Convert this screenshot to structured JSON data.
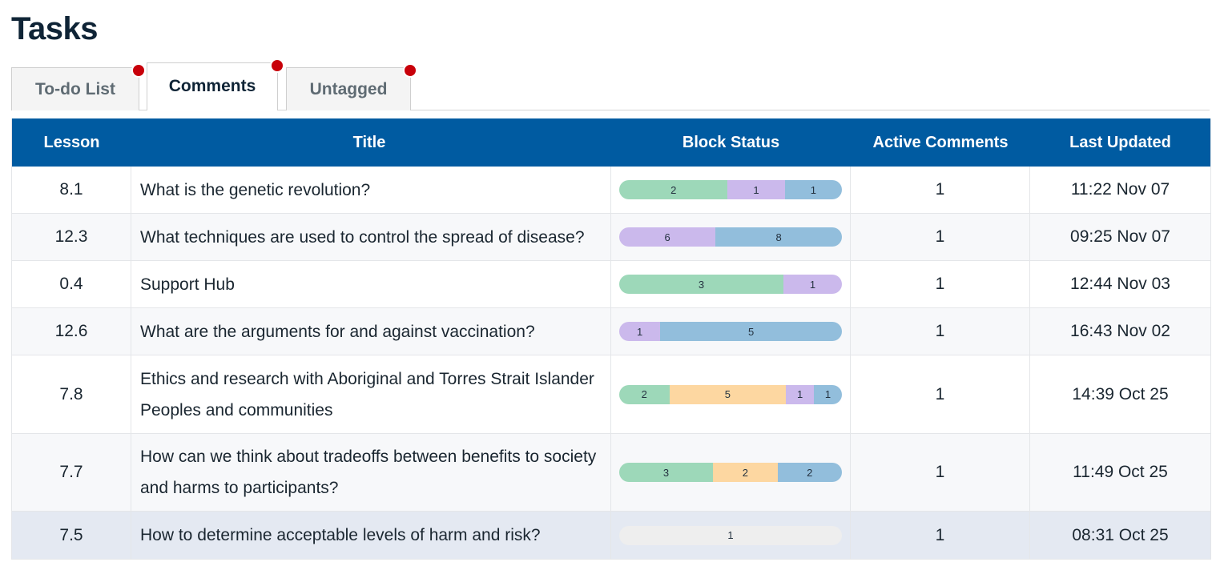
{
  "page": {
    "title": "Tasks"
  },
  "tabs": [
    {
      "label": "To-do List",
      "active": false,
      "has_dot": true
    },
    {
      "label": "Comments",
      "active": true,
      "has_dot": true
    },
    {
      "label": "Untagged",
      "active": false,
      "has_dot": true
    }
  ],
  "colors": {
    "header_bg": "#005ba1",
    "dot": "#c8000a",
    "green": "#9dd8b9",
    "purple": "#cbb9ec",
    "blue": "#92bedc",
    "orange": "#fdd7a1",
    "grey": "#eeeeee"
  },
  "table": {
    "columns": [
      "Lesson",
      "Title",
      "Block Status",
      "Active Comments",
      "Last Updated"
    ],
    "rows": [
      {
        "lesson": "8.1",
        "title": "What is the genetic revolution?",
        "segments": [
          {
            "value": "2",
            "color": "green"
          },
          {
            "value": "1",
            "color": "purple"
          },
          {
            "value": "1",
            "color": "blue"
          }
        ],
        "active_comments": "1",
        "last_updated": "11:22 Nov 07"
      },
      {
        "lesson": "12.3",
        "title": "What techniques are used to control the spread of disease?",
        "segments": [
          {
            "value": "6",
            "color": "purple"
          },
          {
            "value": "8",
            "color": "blue"
          }
        ],
        "active_comments": "1",
        "last_updated": "09:25 Nov 07"
      },
      {
        "lesson": "0.4",
        "title": "Support Hub",
        "segments": [
          {
            "value": "3",
            "color": "green"
          },
          {
            "value": "1",
            "color": "purple"
          }
        ],
        "active_comments": "1",
        "last_updated": "12:44 Nov 03"
      },
      {
        "lesson": "12.6",
        "title": "What are the arguments for and against vaccination?",
        "segments": [
          {
            "value": "1",
            "color": "purple"
          },
          {
            "value": "5",
            "color": "blue"
          }
        ],
        "active_comments": "1",
        "last_updated": "16:43 Nov 02"
      },
      {
        "lesson": "7.8",
        "title": "Ethics and research with Aboriginal and Torres Strait Islander Peoples and communities",
        "segments": [
          {
            "value": "2",
            "color": "green"
          },
          {
            "value": "5",
            "color": "orange"
          },
          {
            "value": "1",
            "color": "purple"
          },
          {
            "value": "1",
            "color": "blue"
          }
        ],
        "active_comments": "1",
        "last_updated": "14:39 Oct 25"
      },
      {
        "lesson": "7.7",
        "title": "How can we think about tradeoffs between benefits to society and harms to participants?",
        "segments": [
          {
            "value": "3",
            "color": "green"
          },
          {
            "value": "2",
            "color": "orange"
          },
          {
            "value": "2",
            "color": "blue"
          }
        ],
        "active_comments": "1",
        "last_updated": "11:49 Oct 25"
      },
      {
        "lesson": "7.5",
        "title": "How to determine acceptable levels of harm and risk?",
        "segments": [
          {
            "value": "1",
            "color": "grey"
          }
        ],
        "active_comments": "1",
        "last_updated": "08:31 Oct 25",
        "selected": true
      }
    ]
  }
}
